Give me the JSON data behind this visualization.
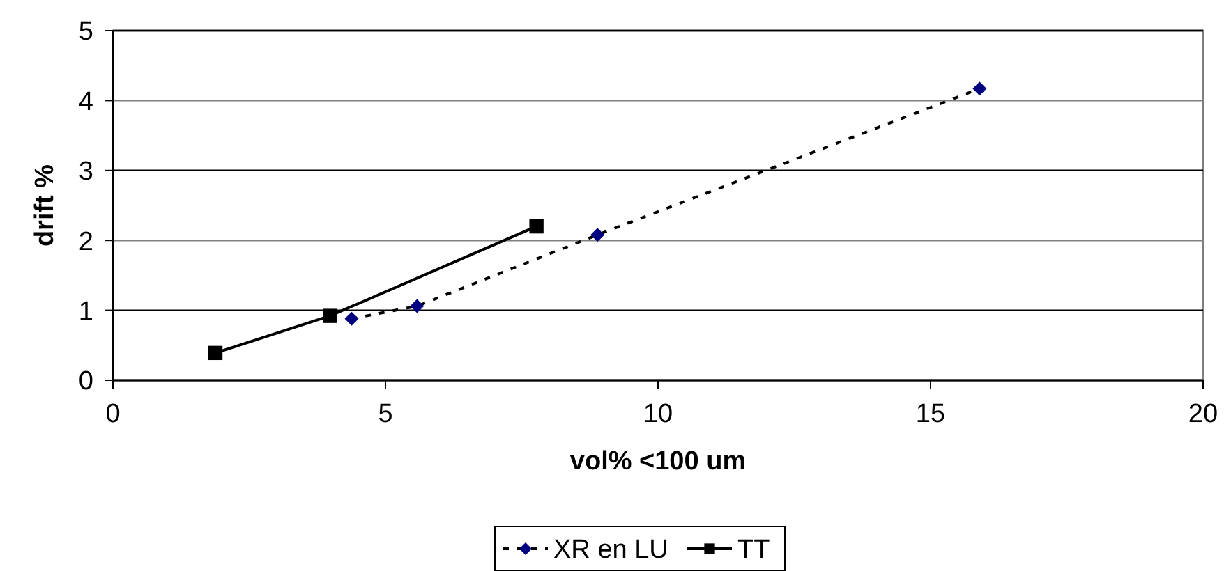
{
  "chart_data": {
    "type": "line",
    "xlabel": "vol% <100 um",
    "ylabel": "drift %",
    "xlim": [
      0,
      20
    ],
    "ylim": [
      0,
      5
    ],
    "xticks": [
      0,
      5,
      10,
      15,
      20
    ],
    "yticks": [
      0,
      1,
      2,
      3,
      4,
      5
    ],
    "grid": "y",
    "legend": "bottom",
    "series": [
      {
        "name": "XR en LU",
        "color": "#000080",
        "marker": "diamond",
        "line_style": "dashed",
        "x": [
          4.38,
          5.58,
          8.89,
          15.9
        ],
        "values": [
          0.88,
          1.06,
          2.08,
          4.17
        ]
      },
      {
        "name": "TT",
        "color": "#000000",
        "marker": "square",
        "line_style": "solid",
        "x": [
          1.88,
          3.98,
          7.77
        ],
        "values": [
          0.39,
          0.92,
          2.2
        ]
      }
    ]
  }
}
